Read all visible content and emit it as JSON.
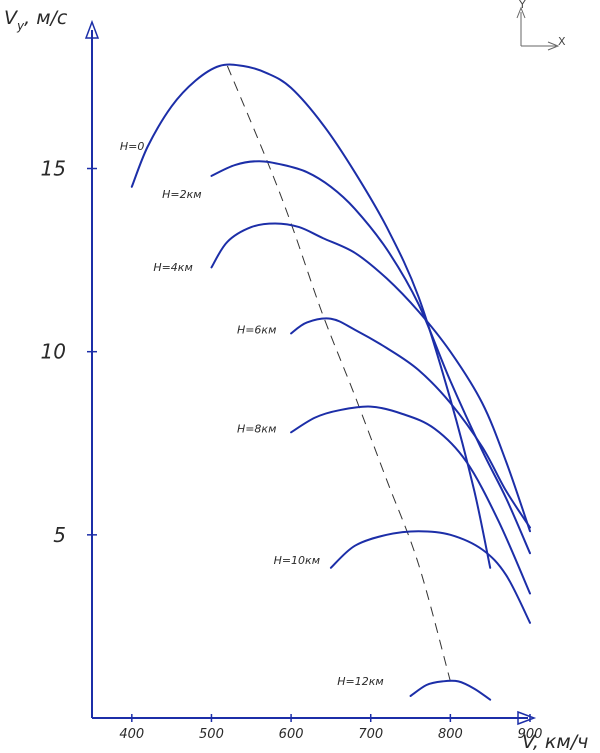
{
  "chart_data": {
    "type": "line",
    "title": "",
    "ylabel": "V",
    "ylabel_sub": "y",
    "ylabel_unit": ", м/с",
    "xlabel": "V, км/ч",
    "xlim": [
      350,
      900
    ],
    "ylim": [
      0,
      19
    ],
    "yticks": [
      {
        "value": 5,
        "label": "5"
      },
      {
        "value": 10,
        "label": "10"
      },
      {
        "value": 15,
        "label": "15"
      }
    ],
    "xticks": [
      {
        "value": 400,
        "label": "400"
      },
      {
        "value": 500,
        "label": "500"
      },
      {
        "value": 600,
        "label": "600"
      },
      {
        "value": 700,
        "label": "700"
      },
      {
        "value": 800,
        "label": "800"
      },
      {
        "value": 900,
        "label": "900"
      }
    ],
    "line_color": "#1c2ea8",
    "series": [
      {
        "name": "H=0",
        "label_at": [
          385,
          15.5
        ],
        "x": [
          400,
          420,
          450,
          480,
          510,
          540,
          570,
          600,
          640,
          680,
          720,
          760,
          800,
          830,
          850
        ],
        "y": [
          14.5,
          15.6,
          16.7,
          17.4,
          17.8,
          17.8,
          17.6,
          17.2,
          16.2,
          14.9,
          13.4,
          11.5,
          8.7,
          6.2,
          4.1
        ]
      },
      {
        "name": "H=2км",
        "label_at": [
          438,
          14.2
        ],
        "x": [
          500,
          530,
          560,
          590,
          620,
          650,
          680,
          720,
          760,
          800,
          840,
          870,
          900
        ],
        "y": [
          14.8,
          15.1,
          15.2,
          15.1,
          14.9,
          14.5,
          13.9,
          12.8,
          11.3,
          9.2,
          7.3,
          6.0,
          4.5
        ]
      },
      {
        "name": "H=4км",
        "label_at": [
          427,
          12.2
        ],
        "x": [
          500,
          520,
          550,
          580,
          610,
          640,
          680,
          720,
          760,
          800,
          840,
          870,
          900
        ],
        "y": [
          12.3,
          13.0,
          13.4,
          13.5,
          13.4,
          13.1,
          12.7,
          12.0,
          11.1,
          10.0,
          8.6,
          7.0,
          5.1
        ]
      },
      {
        "name": "H=6км",
        "label_at": [
          532,
          10.5
        ],
        "x": [
          600,
          620,
          650,
          680,
          720,
          760,
          800,
          840,
          870,
          900
        ],
        "y": [
          10.5,
          10.8,
          10.9,
          10.6,
          10.1,
          9.5,
          8.6,
          7.4,
          6.2,
          5.2
        ]
      },
      {
        "name": "H=8км",
        "label_at": [
          532,
          7.8
        ],
        "x": [
          600,
          630,
          660,
          700,
          740,
          780,
          820,
          860,
          900
        ],
        "y": [
          7.8,
          8.2,
          8.4,
          8.5,
          8.3,
          7.9,
          7.0,
          5.4,
          3.4
        ]
      },
      {
        "name": "H=10км",
        "label_at": [
          578,
          4.2
        ],
        "x": [
          650,
          680,
          720,
          760,
          800,
          840,
          870,
          900
        ],
        "y": [
          4.1,
          4.7,
          5.0,
          5.1,
          5.0,
          4.6,
          3.9,
          2.6
        ]
      },
      {
        "name": "H=12км",
        "label_at": [
          658,
          0.9
        ],
        "x": [
          750,
          770,
          790,
          810,
          830,
          850
        ],
        "y": [
          0.6,
          0.9,
          1.0,
          1.0,
          0.8,
          0.5
        ]
      }
    ],
    "optimum_line": {
      "style": "dashed",
      "x": [
        520,
        570,
        600,
        640,
        680,
        720,
        760,
        800
      ],
      "y": [
        17.8,
        15.2,
        13.5,
        11.0,
        8.8,
        6.5,
        4.2,
        1.0
      ]
    }
  },
  "corner_triad": {
    "y_label": "Y",
    "x_label": "X"
  }
}
